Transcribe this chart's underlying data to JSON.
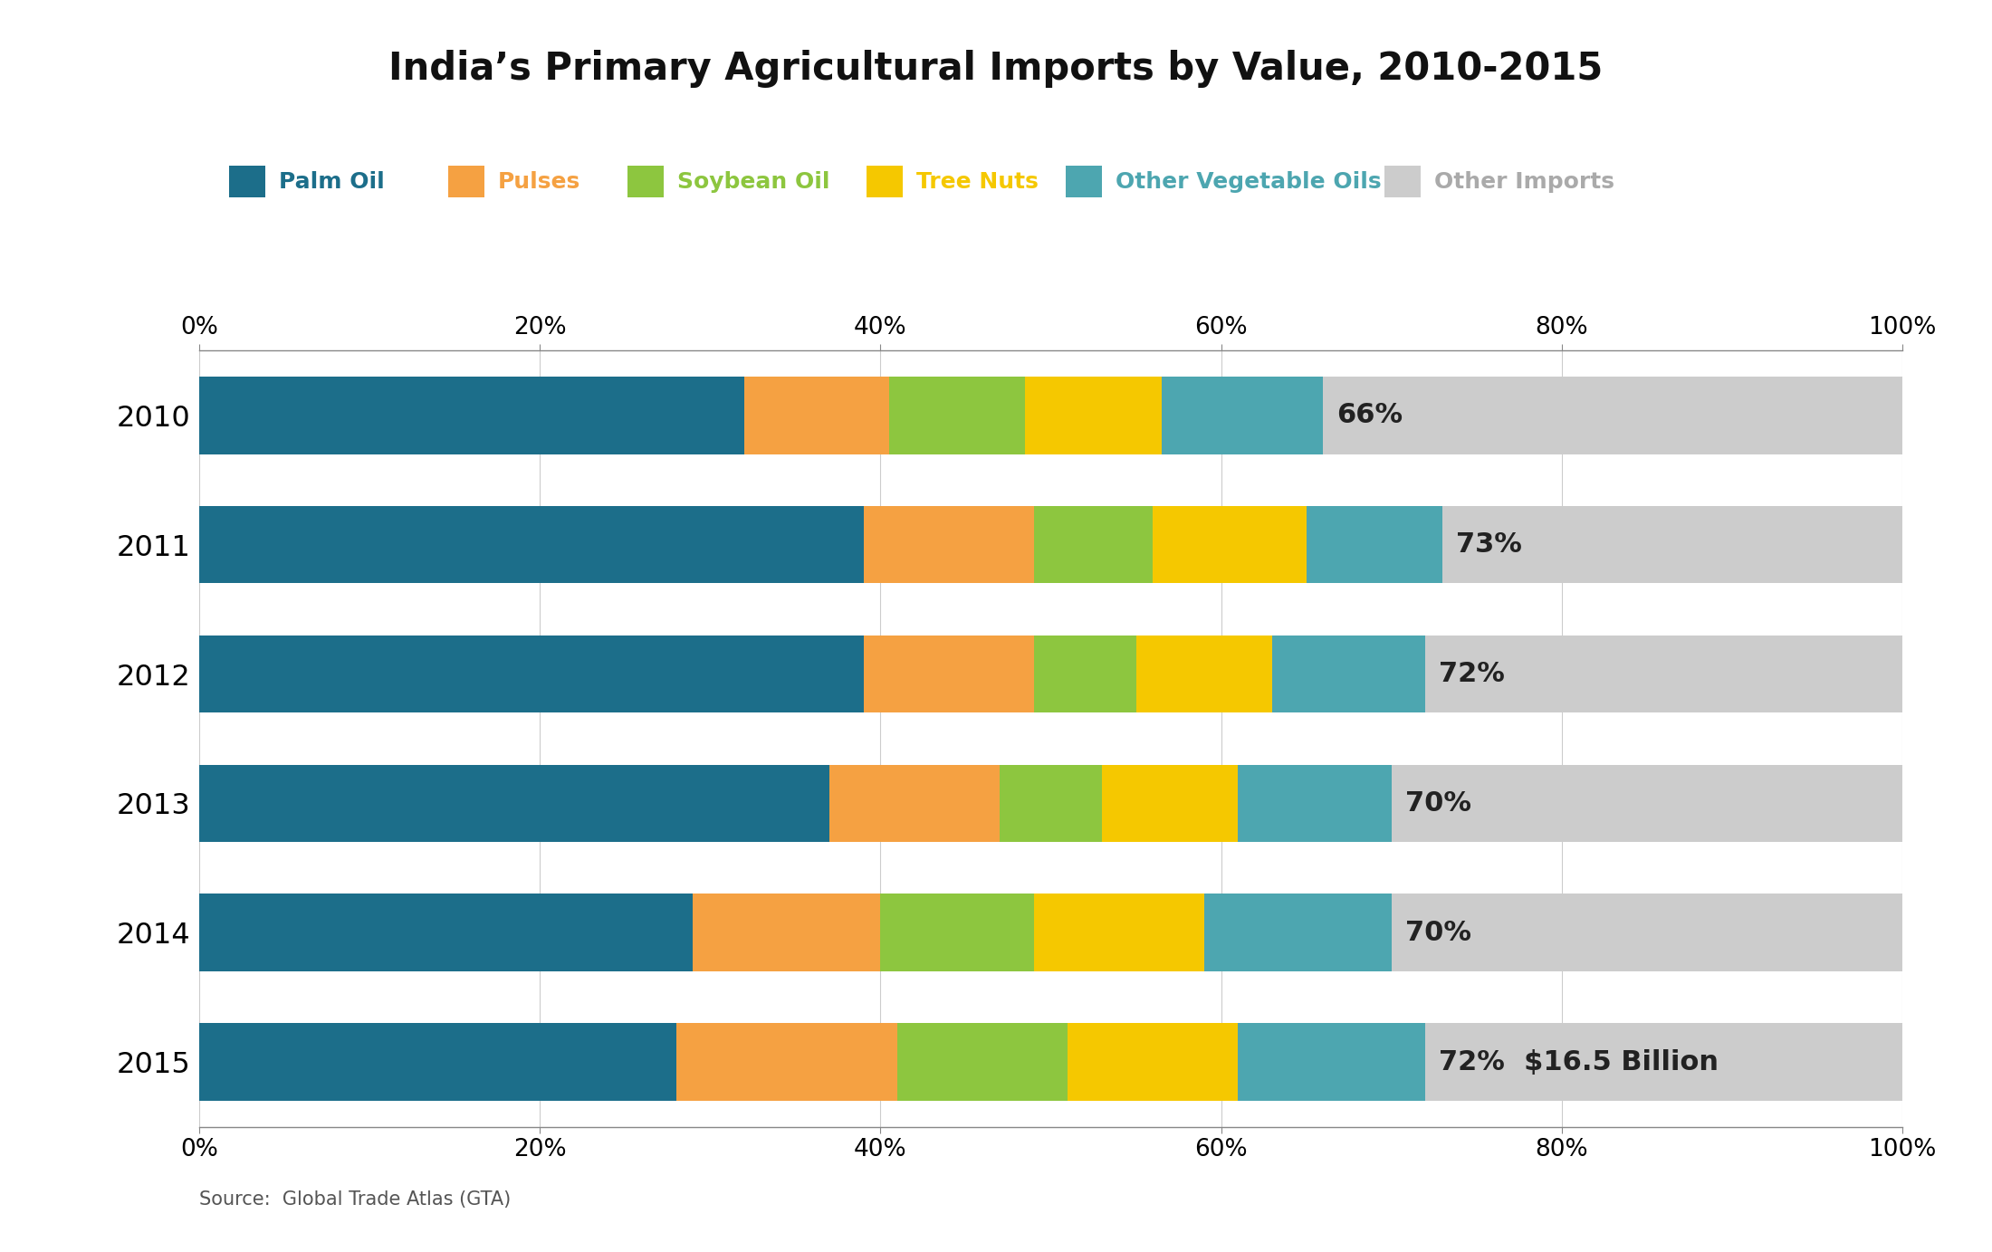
{
  "title": "India’s Primary Agricultural Imports by Value, 2010-2015",
  "years": [
    "2010",
    "2011",
    "2012",
    "2013",
    "2014",
    "2015"
  ],
  "categories": [
    "Palm Oil",
    "Pulses",
    "Soybean Oil",
    "Tree Nuts",
    "Other Vegetable Oils",
    "Other Imports"
  ],
  "colors": [
    "#1c6e8a",
    "#f5a142",
    "#8dc63f",
    "#f5c800",
    "#4da6b0",
    "#cccccc"
  ],
  "legend_text_colors": [
    "#1c6e8a",
    "#f5a142",
    "#8dc63f",
    "#f5c800",
    "#4da6b0",
    "#aaaaaa"
  ],
  "data": [
    [
      32,
      8.5,
      8,
      8,
      9.5,
      34
    ],
    [
      39,
      10,
      7,
      9,
      8,
      27
    ],
    [
      39,
      10,
      6,
      8,
      9,
      28
    ],
    [
      37,
      10,
      6,
      8,
      9,
      30
    ],
    [
      29,
      11,
      9,
      10,
      11,
      30
    ],
    [
      28,
      13,
      10,
      10,
      11,
      28
    ]
  ],
  "annotations": [
    "66%",
    "73%",
    "72%",
    "70%",
    "70%",
    "72%"
  ],
  "annotation_2015_extra": "  $16.5 Billion",
  "source_text": "Source:  Global Trade Atlas (GTA)",
  "background_color": "#ffffff",
  "bar_height": 0.6,
  "title_fontsize": 30,
  "tick_fontsize": 19,
  "year_fontsize": 23,
  "legend_fontsize": 18,
  "annotation_fontsize": 22,
  "source_fontsize": 15
}
